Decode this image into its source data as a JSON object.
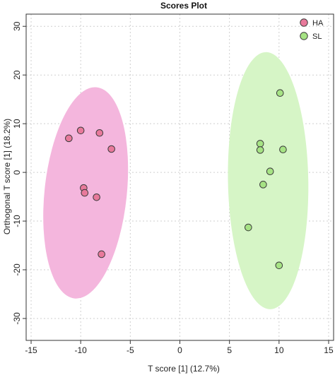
{
  "chart_data": {
    "type": "scatter",
    "title": "Scores Plot",
    "xlabel": "T score [1] (12.7%)",
    "ylabel": "Orthogonal T score [1] (18.2%)",
    "xlim": [
      -15.5,
      15.5
    ],
    "ylim": [
      -34.5,
      32.5
    ],
    "xticks": [
      -15,
      -10,
      -5,
      0,
      5,
      10,
      15
    ],
    "yticks": [
      -30,
      -20,
      -10,
      0,
      10,
      20,
      30
    ],
    "grid": true,
    "legend_position": "top-right",
    "series": [
      {
        "name": "HA",
        "color": "#e8799b",
        "ellipse_color": "#f4b6dd",
        "points": [
          [
            -11.2,
            7.0
          ],
          [
            -10.0,
            8.6
          ],
          [
            -8.1,
            8.1
          ],
          [
            -6.9,
            4.8
          ],
          [
            -9.7,
            -3.2
          ],
          [
            -9.6,
            -4.2
          ],
          [
            -8.4,
            -5.1
          ],
          [
            -7.9,
            -16.8
          ]
        ],
        "ellipse": {
          "cx": -9.5,
          "cy": -4.2,
          "rx": 4.15,
          "ry": 21.8,
          "angle_deg": 6
        }
      },
      {
        "name": "SL",
        "color": "#a6e384",
        "ellipse_color": "#d6f5c6",
        "points": [
          [
            10.1,
            16.3
          ],
          [
            8.1,
            5.9
          ],
          [
            8.1,
            4.6
          ],
          [
            10.4,
            4.7
          ],
          [
            9.1,
            0.2
          ],
          [
            8.4,
            -2.5
          ],
          [
            6.9,
            -11.3
          ],
          [
            10.0,
            -19.1
          ]
        ],
        "ellipse": {
          "cx": 8.9,
          "cy": -1.7,
          "rx": 4.05,
          "ry": 26.4,
          "angle_deg": -1
        }
      }
    ]
  }
}
